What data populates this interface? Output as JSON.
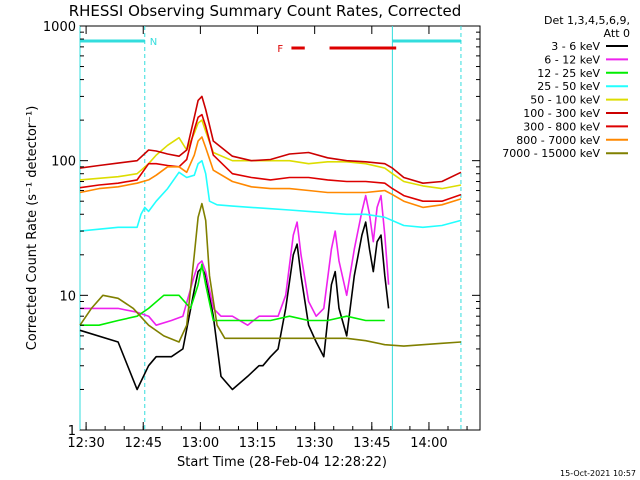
{
  "chart_data": {
    "type": "line",
    "title": "RHESSI Observing Summary Count Rates, Corrected",
    "xlabel": "Start Time (28-Feb-04 12:28:22)",
    "ylabel": "Corrected Count Rate (s⁻¹ detector⁻¹)",
    "x_unit": "minutes after 12:28:22",
    "xlim": [
      0,
      105
    ],
    "ylim": [
      1,
      1000
    ],
    "yscale": "log",
    "x_ticks": [
      {
        "label": "12:30",
        "x": 1.6
      },
      {
        "label": "12:45",
        "x": 16.6
      },
      {
        "label": "13:00",
        "x": 31.6
      },
      {
        "label": "13:15",
        "x": 46.6
      },
      {
        "label": "13:30",
        "x": 61.6
      },
      {
        "label": "13:45",
        "x": 76.6
      },
      {
        "label": "14:00",
        "x": 91.6
      }
    ],
    "y_ticks": [
      {
        "label": "1",
        "y": 1
      },
      {
        "label": "10",
        "y": 10
      },
      {
        "label": "100",
        "y": 100
      },
      {
        "label": "1000",
        "y": 1000
      }
    ],
    "legend": {
      "header": [
        "Det 1,3,4,5,6,9,",
        "Att 0"
      ],
      "position": "right"
    },
    "night_markers": [
      {
        "label": "N",
        "start": 0,
        "end": 17,
        "color": "#33dddd"
      },
      {
        "label": "",
        "start": 82,
        "end": 100,
        "color": "#33dddd"
      }
    ],
    "flare_marker": {
      "label": "F",
      "segments": [
        [
          55.5,
          59
        ],
        [
          65.5,
          83
        ]
      ],
      "color": "#dd0000"
    },
    "vlines": [
      0,
      17,
      82,
      100
    ],
    "series": [
      {
        "name": "3 - 6 keV",
        "color": "#000000",
        "x": [
          0,
          10,
          15,
          18,
          20,
          24,
          27,
          30,
          31,
          32,
          33,
          35,
          37,
          40,
          44,
          47,
          48,
          50,
          52,
          54,
          56,
          57,
          58,
          60,
          62,
          64,
          66,
          67,
          68,
          70,
          72,
          74,
          75,
          76,
          77,
          78,
          79,
          80,
          81
        ],
        "y": [
          5.5,
          4.5,
          2,
          3,
          3.5,
          3.5,
          4,
          11,
          15,
          16,
          14,
          7,
          2.5,
          2,
          2.5,
          3,
          3,
          3.5,
          4,
          8,
          20,
          24,
          14,
          6,
          4.5,
          3.5,
          12,
          15,
          8,
          5,
          14,
          28,
          35,
          22,
          15,
          25,
          28,
          14,
          8
        ]
      },
      {
        "name": "6 - 12 keV",
        "color": "#ee22ee",
        "x": [
          0,
          5,
          10,
          15,
          18,
          20,
          24,
          27,
          30,
          31,
          32,
          33,
          35,
          37,
          40,
          44,
          47,
          50,
          52,
          54,
          56,
          57,
          58,
          60,
          62,
          64,
          66,
          67,
          68,
          70,
          72,
          74,
          75,
          76,
          77,
          78,
          79,
          80,
          81
        ],
        "y": [
          8,
          8,
          8,
          7.5,
          7,
          6,
          6.5,
          7,
          14,
          17,
          18,
          15,
          8,
          7,
          7,
          6,
          7,
          7,
          7,
          10,
          28,
          35,
          20,
          9,
          7,
          8,
          22,
          30,
          18,
          10,
          22,
          42,
          55,
          40,
          25,
          45,
          55,
          28,
          12
        ]
      },
      {
        "name": "12 - 25 keV",
        "color": "#00ee00",
        "x": [
          0,
          5,
          10,
          15,
          18,
          22,
          26,
          29,
          31,
          32,
          33,
          35,
          38,
          42,
          46,
          50,
          55,
          60,
          65,
          70,
          75,
          80
        ],
        "y": [
          6,
          6,
          6.5,
          7,
          8,
          10,
          10,
          8,
          12,
          17,
          12,
          6.5,
          6.5,
          6.5,
          6.5,
          6.5,
          7,
          6.5,
          6.5,
          7,
          6.5,
          6.5
        ]
      },
      {
        "name": "25 - 50 keV",
        "color": "#22ffff",
        "x": [
          0,
          5,
          10,
          15,
          16,
          17,
          18,
          20,
          23,
          26,
          28,
          30,
          31,
          32,
          33,
          34,
          36,
          40,
          45,
          50,
          55,
          60,
          65,
          70,
          75,
          80,
          85,
          90,
          95,
          100
        ],
        "y": [
          30,
          31,
          32,
          32,
          40,
          45,
          42,
          50,
          62,
          82,
          75,
          78,
          95,
          100,
          80,
          50,
          47,
          46,
          45,
          44,
          43,
          42,
          41,
          40,
          40,
          38,
          33,
          32,
          33,
          36
        ]
      },
      {
        "name": "50 - 100 keV",
        "color": "#dddd00",
        "x": [
          0,
          5,
          10,
          15,
          18,
          20,
          23,
          26,
          28,
          30,
          31,
          32,
          33,
          35,
          40,
          45,
          50,
          55,
          60,
          65,
          70,
          75,
          80,
          82,
          85,
          90,
          95,
          100
        ],
        "y": [
          72,
          74,
          76,
          80,
          95,
          110,
          130,
          148,
          120,
          160,
          190,
          200,
          165,
          115,
          100,
          100,
          100,
          100,
          95,
          98,
          98,
          95,
          88,
          80,
          70,
          65,
          62,
          66
        ]
      },
      {
        "name": "100 - 300 keV",
        "color": "#cc0000",
        "x": [
          0,
          5,
          10,
          15,
          18,
          20,
          23,
          26,
          28,
          30,
          31,
          32,
          33,
          35,
          40,
          45,
          50,
          55,
          60,
          65,
          70,
          75,
          80,
          82,
          85,
          90,
          95,
          100
        ],
        "y": [
          88,
          92,
          96,
          100,
          120,
          118,
          112,
          108,
          120,
          210,
          280,
          300,
          240,
          140,
          108,
          100,
          102,
          112,
          115,
          105,
          100,
          98,
          95,
          88,
          75,
          68,
          70,
          82
        ]
      },
      {
        "name": "300 - 800 keV",
        "color": "#dd0000",
        "x": [
          0,
          5,
          10,
          15,
          18,
          20,
          23,
          26,
          28,
          30,
          31,
          32,
          33,
          35,
          40,
          45,
          50,
          55,
          60,
          65,
          70,
          75,
          80,
          82,
          85,
          90,
          95,
          100
        ],
        "y": [
          63,
          66,
          68,
          72,
          95,
          95,
          92,
          90,
          102,
          170,
          210,
          220,
          180,
          110,
          80,
          75,
          72,
          75,
          75,
          72,
          70,
          70,
          68,
          62,
          55,
          50,
          50,
          56
        ]
      },
      {
        "name": "800 - 7000 keV",
        "color": "#ff8800",
        "x": [
          0,
          5,
          10,
          15,
          18,
          20,
          23,
          26,
          28,
          30,
          31,
          32,
          33,
          35,
          40,
          45,
          50,
          55,
          60,
          65,
          70,
          75,
          80,
          82,
          85,
          90,
          95,
          100
        ],
        "y": [
          58,
          62,
          64,
          68,
          72,
          78,
          90,
          90,
          82,
          110,
          140,
          150,
          125,
          85,
          70,
          64,
          62,
          62,
          60,
          58,
          58,
          58,
          60,
          56,
          50,
          45,
          47,
          52
        ]
      },
      {
        "name": "7000 - 15000 keV",
        "color": "#808000",
        "x": [
          0,
          3,
          6,
          10,
          14,
          18,
          22,
          26,
          28,
          30,
          31,
          32,
          33,
          34,
          36,
          38,
          42,
          46,
          50,
          55,
          60,
          65,
          70,
          75,
          80,
          85,
          90,
          95,
          100
        ],
        "y": [
          6,
          8,
          10,
          9.5,
          8,
          6,
          5,
          4.5,
          6,
          20,
          38,
          48,
          36,
          14,
          6,
          4.8,
          4.8,
          4.8,
          4.8,
          4.8,
          4.8,
          4.8,
          4.8,
          4.6,
          4.3,
          4.2,
          4.3,
          4.4,
          4.5
        ]
      }
    ]
  },
  "footer": {
    "date": "15-Oct-2021 10:57"
  }
}
